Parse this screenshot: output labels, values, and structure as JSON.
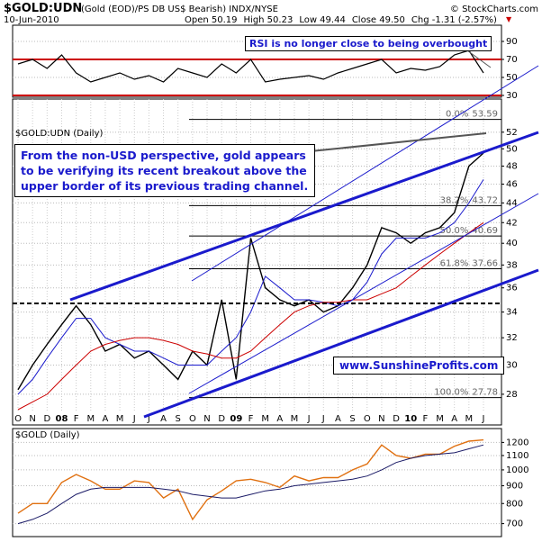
{
  "header": {
    "title": "$GOLD:UDN",
    "subtitle": "(Gold (EOD)/PS DB US$ Bearish) INDX/NYSE",
    "credit": "© StockCharts.com",
    "date": "10-Jun-2010",
    "quote": [
      "Open 50.19",
      "High 50.23",
      "Low 49.44",
      "Close 49.50",
      "Chg -1.31 (-2.57%)"
    ]
  },
  "chart_data": [
    {
      "type": "line",
      "color": "#000000",
      "ylim": [
        28,
        108
      ],
      "yticks": [
        30,
        50,
        70,
        90
      ],
      "overbought_level": 70,
      "oversold_level": 30,
      "level_color": "#cc0000",
      "values": [
        65,
        70,
        60,
        75,
        55,
        45,
        50,
        55,
        48,
        52,
        45,
        60,
        55,
        50,
        65,
        55,
        70,
        45,
        48,
        50,
        52,
        48,
        55,
        60,
        65,
        70,
        55,
        60,
        58,
        62,
        75,
        80,
        55
      ],
      "annotation": "RSI is no longer close to being overbought",
      "grid": true
    },
    {
      "type": "line",
      "title": "$GOLD:UDN (Daily)",
      "log_scale": true,
      "grid": true,
      "categories": [
        "O",
        "N",
        "D",
        "08",
        "F",
        "M",
        "A",
        "M",
        "J",
        "J",
        "A",
        "S",
        "O",
        "N",
        "D",
        "09",
        "F",
        "M",
        "A",
        "M",
        "J",
        "J",
        "A",
        "S",
        "O",
        "N",
        "D",
        "10",
        "F",
        "M",
        "A",
        "M",
        "J"
      ],
      "series": [
        {
          "color": "#000000",
          "values": [
            28.3,
            30,
            31.5,
            33,
            34.5,
            33,
            31,
            31.5,
            30.5,
            31,
            30,
            29,
            31,
            30,
            35,
            29,
            40.5,
            36,
            35,
            34.5,
            35,
            34,
            34.5,
            36,
            38,
            41.5,
            41,
            40,
            41,
            41.5,
            43,
            48,
            49.5
          ]
        },
        {
          "color": "#1a1acc",
          "values": [
            28,
            29,
            30.5,
            32,
            33.5,
            33.5,
            32,
            31.5,
            31,
            31,
            30.5,
            30,
            30,
            30,
            31,
            32,
            34,
            37,
            36,
            35,
            35,
            34.8,
            34.5,
            35,
            36.5,
            39,
            40.5,
            40.5,
            40.5,
            41,
            42,
            44,
            46.5
          ]
        },
        {
          "color": "#cc0000",
          "values": [
            27,
            27.5,
            28,
            29,
            30,
            31,
            31.5,
            31.8,
            32,
            32,
            31.8,
            31.5,
            31,
            30.8,
            30.5,
            30.5,
            31,
            32,
            33,
            34,
            34.5,
            34.8,
            34.8,
            35,
            35,
            35.5,
            36,
            37,
            38,
            39,
            40,
            41,
            42
          ]
        }
      ],
      "ylim": [
        27,
        56
      ],
      "yticks": [
        28,
        30,
        32,
        34,
        36,
        38,
        40,
        42,
        44,
        46,
        48,
        50,
        52
      ],
      "fib_levels": [
        {
          "label": "0.0%",
          "value": 53.59
        },
        {
          "label": "38.2%",
          "value": 43.72
        },
        {
          "label": "50.0%",
          "value": 40.69
        },
        {
          "label": "61.8%",
          "value": 37.66
        },
        {
          "label": "100.0%",
          "value": 27.78
        }
      ],
      "annotation": "From the non-USD perspective, gold appears to be verifying its recent breakout above the upper border of its previous trading channel.",
      "watermark": "www.SunshineProfits.com"
    },
    {
      "type": "line",
      "title": "$GOLD (Daily)",
      "log_scale": true,
      "grid": true,
      "series": [
        {
          "color": "#e07010",
          "values": [
            750,
            800,
            800,
            920,
            970,
            930,
            880,
            880,
            930,
            920,
            830,
            880,
            720,
            820,
            870,
            930,
            940,
            920,
            890,
            960,
            930,
            950,
            950,
            1000,
            1040,
            1180,
            1100,
            1080,
            1110,
            1110,
            1170,
            1210,
            1220
          ]
        },
        {
          "color": "#1a1a66",
          "values": [
            700,
            720,
            750,
            800,
            850,
            880,
            890,
            890,
            890,
            890,
            880,
            870,
            850,
            840,
            830,
            830,
            850,
            870,
            880,
            900,
            910,
            920,
            930,
            940,
            960,
            1000,
            1050,
            1080,
            1100,
            1110,
            1120,
            1150,
            1180
          ]
        }
      ],
      "ylim": [
        650,
        1300
      ],
      "yticks": [
        700,
        800,
        900,
        1000,
        1100,
        1200
      ]
    }
  ]
}
